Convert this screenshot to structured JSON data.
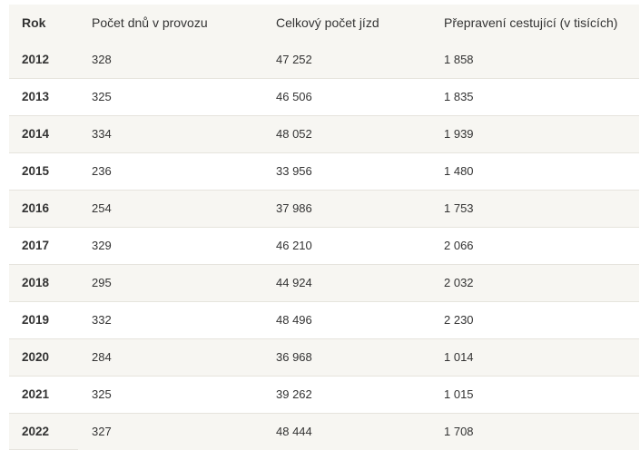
{
  "table": {
    "headers": [
      "Rok",
      "Počet dnů v provozu",
      "Celkový počet jízd",
      "Přepravení cestující (v tisících)"
    ],
    "rows": [
      [
        "2012",
        "328",
        "47 252",
        "1 858"
      ],
      [
        "2013",
        "325",
        "46 506",
        "1 835"
      ],
      [
        "2014",
        "334",
        "48 052",
        "1 939"
      ],
      [
        "2015",
        "236",
        "33 956",
        "1 480"
      ],
      [
        "2016",
        "254",
        "37 986",
        "1 753"
      ],
      [
        "2017",
        "329",
        "46 210",
        "2 066"
      ],
      [
        "2018",
        "295",
        "44 924",
        "2 032"
      ],
      [
        "2019",
        "332",
        "48 496",
        "2 230"
      ],
      [
        "2020",
        "284",
        "36 968",
        "1 014"
      ],
      [
        "2021",
        "325",
        "39 262",
        "1 015"
      ],
      [
        "2022",
        "327",
        "48 444",
        "1 708"
      ]
    ]
  },
  "colors": {
    "stripe": "#f7f6f2",
    "text": "#333333",
    "divider": "#e6e4dd"
  }
}
